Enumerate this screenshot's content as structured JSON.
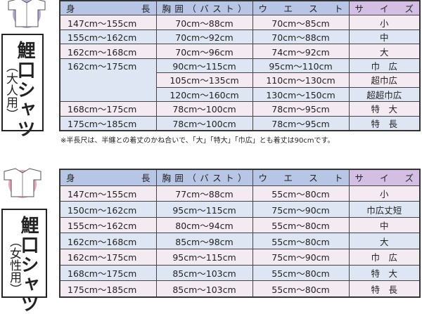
{
  "adult": {
    "title": "鯉口シャツ",
    "subtitle": "（大人用）",
    "icon": "shirt-icon",
    "icon_color": "#b6a6d6",
    "headers": [
      "身　長",
      "胸囲（バスト）",
      "ウエスト",
      "サイズ"
    ],
    "rows": [
      [
        "147cm～155cm",
        "70cm～88cm",
        "70cm～85cm",
        "小"
      ],
      [
        "155cm～162cm",
        "70cm～92cm",
        "70cm～88cm",
        "中"
      ],
      [
        "162cm～168cm",
        "70cm～96cm",
        "74cm～92cm",
        "大"
      ],
      [
        "162cm～175cm",
        "90cm～115cm",
        "95cm～110cm",
        "巾　広"
      ],
      [
        "",
        "105cm～135cm",
        "110cm～130cm",
        "超巾広"
      ],
      [
        "",
        "120cm～160cm",
        "130cm～150cm",
        "超超巾広"
      ],
      [
        "168cm～175cm",
        "78cm～100cm",
        "78cm～95cm",
        "特　大"
      ],
      [
        "175cm～185cm",
        "78cm～100cm",
        "78cm～95cm",
        "特　長"
      ]
    ],
    "note": "※半長尺は、半纏との着丈のかね合いで、「大」「特大」「巾広」とも着丈は90cmです。"
  },
  "women": {
    "title": "鯉口シャツ",
    "subtitle": "（女性用）",
    "icon": "shirt-icon",
    "icon_color": "#e8a3bd",
    "headers": [
      "身　長",
      "胸囲（バスト）",
      "ウエスト",
      "サイズ"
    ],
    "rows": [
      [
        "147cm～155cm",
        "77cm～88cm",
        "55cm～80cm",
        "小"
      ],
      [
        "150cm～162cm",
        "95cm～115cm",
        "75cm～90cm",
        "巾広丈短"
      ],
      [
        "155cm～162cm",
        "80cm～94cm",
        "55cm～80cm",
        "中"
      ],
      [
        "162cm～168cm",
        "85cm～98cm",
        "55cm～80cm",
        "大"
      ],
      [
        "162cm～175cm",
        "95cm～115cm",
        "75cm～90cm",
        "巾　広"
      ],
      [
        "168cm～175cm",
        "85cm～103cm",
        "55cm～80cm",
        "特　大"
      ],
      [
        "175cm～185cm",
        "85cm～103cm",
        "55cm～80cm",
        "特　長"
      ]
    ]
  }
}
